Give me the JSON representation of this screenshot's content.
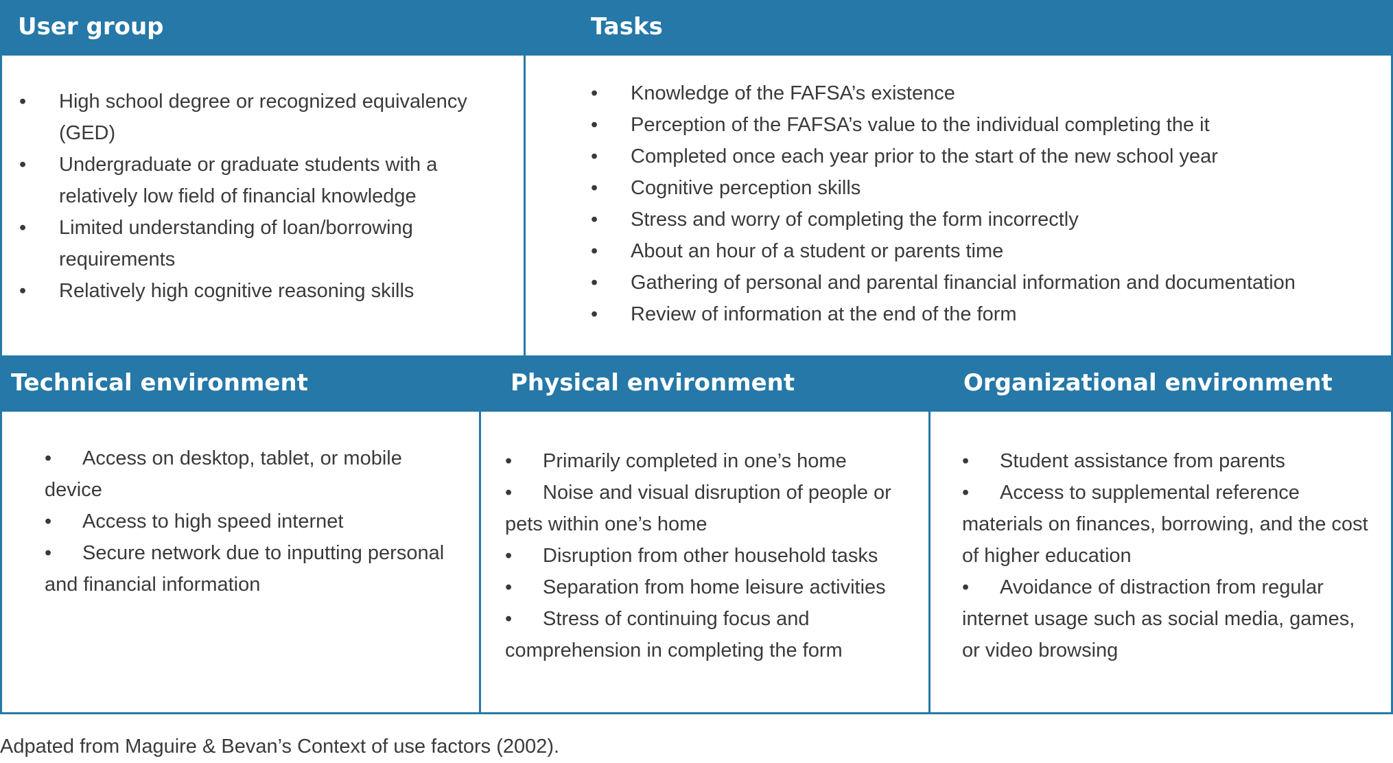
{
  "colors": {
    "header_bg": "#2578a7",
    "header_text": "#ffffff",
    "border": "#2578a7",
    "body_text": "#3a3a3a"
  },
  "bullet_symbol": "•",
  "user_group": {
    "heading": "User group",
    "items": [
      "High school degree or recognized equivalency (GED)",
      "Undergraduate or graduate students with a relatively low field of financial knowledge",
      "Limited understanding of loan/borrowing requirements",
      "Relatively high cognitive reasoning skills"
    ]
  },
  "tasks": {
    "heading": "Tasks",
    "items": [
      "Knowledge of the FAFSA’s existence",
      "Perception of the FAFSA’s value to the individual completing the it",
      "Completed once each year prior to the start of the new school year",
      "Cognitive perception skills",
      "Stress and worry of completing the form incorrectly",
      "About an hour of a student or parents time",
      "Gathering of personal and parental financial information and documentation",
      "Review of information at the end of the form"
    ]
  },
  "technical": {
    "heading": "Technical environment",
    "items": [
      "Access on desktop, tablet, or mobile device",
      "Access to high speed internet",
      "Secure network due to inputting personal and financial information"
    ]
  },
  "physical": {
    "heading": "Physical environment",
    "items": [
      "Primarily completed in one’s home",
      "Noise and visual disruption of people or pets within one’s home",
      "Disruption from other household tasks",
      "Separation from home leisure activities",
      "Stress of continuing focus and comprehension in completing the form"
    ]
  },
  "organizational": {
    "heading": "Organizational environment",
    "items": [
      "Student assistance from parents",
      "Access to supplemental reference materials on finances, borrowing, and the cost of higher education",
      "Avoidance of distraction from regular internet usage such as social media, games, or video browsing"
    ]
  },
  "caption": "Adpated from Maguire & Bevan’s Context of use factors (2002)."
}
